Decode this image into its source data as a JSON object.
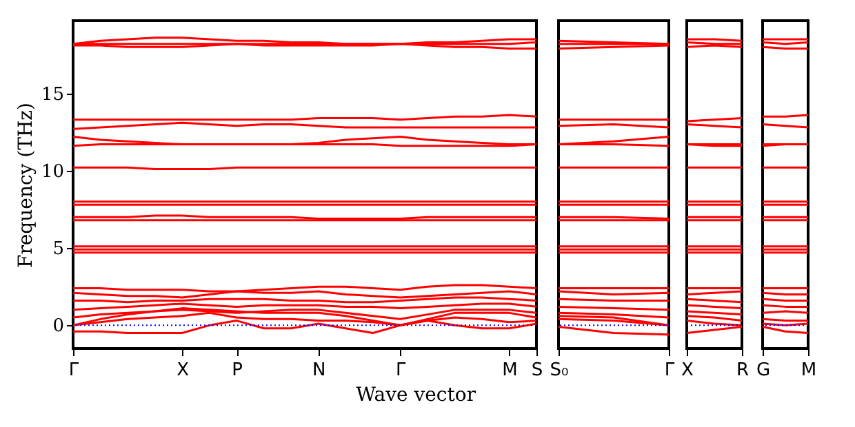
{
  "chart_data": [
    {
      "type": "line",
      "ylabel": "Frequency (THz)",
      "xlabel": "Wave vector",
      "categories": [
        "Γ",
        null,
        null,
        null,
        "X",
        null,
        "P",
        null,
        null,
        "N",
        null,
        null,
        "Γ",
        null,
        null,
        null,
        "M",
        "S"
      ],
      "ylim": [
        -1.5,
        19.7
      ],
      "yticks": [
        0,
        5,
        10,
        15
      ],
      "grid": false,
      "ref_lines": [
        {
          "axis": "y",
          "value": 0,
          "color": "#0000ff",
          "line_style": "dotted"
        }
      ],
      "series": [
        {
          "color": "#ff0000",
          "values": [
            18.2,
            18.4,
            18.5,
            18.6,
            18.6,
            18.5,
            18.4,
            18.4,
            18.3,
            18.3,
            18.2,
            18.2,
            18.2,
            18.3,
            18.3,
            18.4,
            18.5,
            18.5
          ]
        },
        {
          "color": "#ff0000",
          "values": [
            18.2,
            18.2,
            18.2,
            18.2,
            18.2,
            18.2,
            18.2,
            18.2,
            18.2,
            18.2,
            18.2,
            18.2,
            18.2,
            18.2,
            18.2,
            18.2,
            18.2,
            18.3
          ]
        },
        {
          "color": "#ff0000",
          "values": [
            18.1,
            18.1,
            18.0,
            18.0,
            18.0,
            18.1,
            18.2,
            18.1,
            18.1,
            18.1,
            18.1,
            18.1,
            18.2,
            18.1,
            18.0,
            18.0,
            17.9,
            17.9
          ]
        },
        {
          "color": "#ff0000",
          "values": [
            13.3,
            13.3,
            13.3,
            13.3,
            13.3,
            13.3,
            13.3,
            13.3,
            13.3,
            13.4,
            13.4,
            13.4,
            13.3,
            13.4,
            13.5,
            13.5,
            13.6,
            13.5
          ]
        },
        {
          "color": "#ff0000",
          "values": [
            12.7,
            12.8,
            12.9,
            13.0,
            13.1,
            13.0,
            12.9,
            13.0,
            13.0,
            12.9,
            12.8,
            12.8,
            12.8,
            12.8,
            12.8,
            12.8,
            12.8,
            12.8
          ]
        },
        {
          "color": "#ff0000",
          "values": [
            12.2,
            12.0,
            11.9,
            11.8,
            11.7,
            11.7,
            11.7,
            11.7,
            11.7,
            11.8,
            12.0,
            12.1,
            12.2,
            12.0,
            11.9,
            11.8,
            11.7,
            11.7
          ]
        },
        {
          "color": "#ff0000",
          "values": [
            11.6,
            11.7,
            11.7,
            11.7,
            11.7,
            11.7,
            11.7,
            11.7,
            11.7,
            11.7,
            11.7,
            11.7,
            11.6,
            11.6,
            11.6,
            11.6,
            11.6,
            11.7
          ]
        },
        {
          "color": "#ff0000",
          "values": [
            10.2,
            10.2,
            10.2,
            10.1,
            10.1,
            10.1,
            10.2,
            10.2,
            10.2,
            10.2,
            10.2,
            10.2,
            10.2,
            10.2,
            10.2,
            10.2,
            10.2,
            10.2
          ]
        },
        {
          "color": "#ff0000",
          "values": [
            8.0,
            8.0,
            8.0,
            8.0,
            8.0,
            8.0,
            8.0,
            8.0,
            8.0,
            8.0,
            8.0,
            8.0,
            8.0,
            8.0,
            8.0,
            8.0,
            8.0,
            8.0
          ]
        },
        {
          "color": "#ff0000",
          "values": [
            7.8,
            7.8,
            7.8,
            7.8,
            7.8,
            7.8,
            7.8,
            7.8,
            7.8,
            7.8,
            7.8,
            7.8,
            7.8,
            7.8,
            7.8,
            7.8,
            7.8,
            7.8
          ]
        },
        {
          "color": "#ff0000",
          "values": [
            7.0,
            7.0,
            7.0,
            7.1,
            7.1,
            7.0,
            7.0,
            7.0,
            7.0,
            6.9,
            6.9,
            6.9,
            6.9,
            7.0,
            7.0,
            7.0,
            7.0,
            7.0
          ]
        },
        {
          "color": "#ff0000",
          "values": [
            6.8,
            6.8,
            6.8,
            6.8,
            6.8,
            6.8,
            6.8,
            6.8,
            6.8,
            6.8,
            6.8,
            6.8,
            6.8,
            6.8,
            6.8,
            6.8,
            6.8,
            6.8
          ]
        },
        {
          "color": "#ff0000",
          "values": [
            5.1,
            5.1,
            5.1,
            5.1,
            5.1,
            5.1,
            5.1,
            5.1,
            5.1,
            5.1,
            5.1,
            5.1,
            5.1,
            5.1,
            5.1,
            5.1,
            5.1,
            5.1
          ]
        },
        {
          "color": "#ff0000",
          "values": [
            4.9,
            4.9,
            4.9,
            4.9,
            4.9,
            4.9,
            4.9,
            4.9,
            4.9,
            4.9,
            4.9,
            4.9,
            4.9,
            4.9,
            4.9,
            4.9,
            4.9,
            4.9
          ]
        },
        {
          "color": "#ff0000",
          "values": [
            4.7,
            4.7,
            4.7,
            4.7,
            4.7,
            4.7,
            4.7,
            4.7,
            4.7,
            4.7,
            4.7,
            4.7,
            4.7,
            4.7,
            4.7,
            4.7,
            4.7,
            4.7
          ]
        },
        {
          "color": "#ff0000",
          "values": [
            2.4,
            2.4,
            2.3,
            2.3,
            2.3,
            2.2,
            2.2,
            2.3,
            2.4,
            2.5,
            2.5,
            2.4,
            2.3,
            2.5,
            2.6,
            2.6,
            2.5,
            2.4
          ]
        },
        {
          "color": "#ff0000",
          "values": [
            2.1,
            2.0,
            1.9,
            1.9,
            1.8,
            2.0,
            2.2,
            2.1,
            2.1,
            2.2,
            2.0,
            1.9,
            1.8,
            1.9,
            2.0,
            2.1,
            2.2,
            2.0
          ]
        },
        {
          "color": "#ff0000",
          "values": [
            1.6,
            1.6,
            1.5,
            1.6,
            1.6,
            1.7,
            1.7,
            1.7,
            1.6,
            1.6,
            1.5,
            1.5,
            1.6,
            1.7,
            1.8,
            1.8,
            1.7,
            1.6
          ]
        },
        {
          "color": "#ff0000",
          "values": [
            1.0,
            1.1,
            1.2,
            1.3,
            1.4,
            1.3,
            1.2,
            1.3,
            1.3,
            1.3,
            1.2,
            1.2,
            1.1,
            1.2,
            1.3,
            1.4,
            1.4,
            1.2
          ]
        },
        {
          "color": "#ff0000",
          "values": [
            0.5,
            0.7,
            0.8,
            0.9,
            1.0,
            0.9,
            0.8,
            0.9,
            1.0,
            1.0,
            0.8,
            0.6,
            0.4,
            0.7,
            1.0,
            1.0,
            1.0,
            0.8
          ]
        },
        {
          "color": "#ff0000",
          "values": [
            0.0,
            0.4,
            0.7,
            0.9,
            1.1,
            1.0,
            0.9,
            0.8,
            0.8,
            0.8,
            0.6,
            0.3,
            0.0,
            0.4,
            0.8,
            0.8,
            0.8,
            0.5
          ]
        },
        {
          "color": "#ff0000",
          "values": [
            0.0,
            0.2,
            0.4,
            0.5,
            0.6,
            0.8,
            0.5,
            0.4,
            0.4,
            0.3,
            0.3,
            0.2,
            0.0,
            0.3,
            0.5,
            0.4,
            0.2,
            0.3
          ]
        },
        {
          "color": "#ff0000",
          "values": [
            -0.4,
            -0.4,
            -0.5,
            -0.5,
            -0.5,
            0.0,
            0.3,
            -0.2,
            -0.2,
            0.1,
            -0.2,
            -0.5,
            0.0,
            0.3,
            0.0,
            -0.2,
            -0.2,
            0.1
          ]
        }
      ]
    },
    {
      "type": "line",
      "categories": [
        "S₀",
        null,
        "Γ"
      ],
      "ylim": [
        -1.5,
        19.7
      ],
      "grid": false,
      "tick_labels": "x",
      "ref_lines": [
        {
          "axis": "y",
          "value": 0,
          "color": "#0000ff",
          "line_style": "dotted"
        }
      ],
      "series": [
        {
          "color": "#ff0000",
          "values": [
            18.4,
            18.3,
            18.2
          ]
        },
        {
          "color": "#ff0000",
          "values": [
            18.2,
            18.2,
            18.2
          ]
        },
        {
          "color": "#ff0000",
          "values": [
            17.9,
            18.0,
            18.1
          ]
        },
        {
          "color": "#ff0000",
          "values": [
            13.3,
            13.3,
            13.3
          ]
        },
        {
          "color": "#ff0000",
          "values": [
            12.9,
            13.0,
            12.8
          ]
        },
        {
          "color": "#ff0000",
          "values": [
            11.7,
            11.9,
            12.2
          ]
        },
        {
          "color": "#ff0000",
          "values": [
            11.7,
            11.7,
            11.6
          ]
        },
        {
          "color": "#ff0000",
          "values": [
            10.2,
            10.2,
            10.2
          ]
        },
        {
          "color": "#ff0000",
          "values": [
            8.0,
            8.0,
            8.0
          ]
        },
        {
          "color": "#ff0000",
          "values": [
            7.8,
            7.8,
            7.8
          ]
        },
        {
          "color": "#ff0000",
          "values": [
            7.0,
            7.0,
            6.9
          ]
        },
        {
          "color": "#ff0000",
          "values": [
            6.8,
            6.8,
            6.8
          ]
        },
        {
          "color": "#ff0000",
          "values": [
            5.1,
            5.1,
            5.1
          ]
        },
        {
          "color": "#ff0000",
          "values": [
            4.9,
            4.9,
            4.9
          ]
        },
        {
          "color": "#ff0000",
          "values": [
            4.7,
            4.7,
            4.7
          ]
        },
        {
          "color": "#ff0000",
          "values": [
            2.4,
            2.4,
            2.4
          ]
        },
        {
          "color": "#ff0000",
          "values": [
            2.2,
            2.0,
            2.1
          ]
        },
        {
          "color": "#ff0000",
          "values": [
            1.7,
            1.6,
            1.6
          ]
        },
        {
          "color": "#ff0000",
          "values": [
            1.2,
            1.1,
            1.0
          ]
        },
        {
          "color": "#ff0000",
          "values": [
            0.8,
            0.7,
            0.5
          ]
        },
        {
          "color": "#ff0000",
          "values": [
            0.6,
            0.5,
            0.0
          ]
        },
        {
          "color": "#ff0000",
          "values": [
            0.4,
            0.3,
            0.0
          ]
        },
        {
          "color": "#ff0000",
          "values": [
            -0.1,
            -0.5,
            -0.6
          ]
        }
      ]
    },
    {
      "type": "line",
      "categories": [
        "X",
        null,
        "R"
      ],
      "ylim": [
        -1.5,
        19.7
      ],
      "grid": false,
      "tick_labels": "x",
      "ref_lines": [
        {
          "axis": "y",
          "value": 0,
          "color": "#0000ff",
          "line_style": "dotted"
        }
      ],
      "series": [
        {
          "color": "#ff0000",
          "values": [
            18.5,
            18.5,
            18.4
          ]
        },
        {
          "color": "#ff0000",
          "values": [
            18.3,
            18.2,
            18.2
          ]
        },
        {
          "color": "#ff0000",
          "values": [
            18.0,
            18.1,
            18.0
          ]
        },
        {
          "color": "#ff0000",
          "values": [
            13.2,
            13.3,
            13.4
          ]
        },
        {
          "color": "#ff0000",
          "values": [
            13.0,
            12.9,
            12.8
          ]
        },
        {
          "color": "#ff0000",
          "values": [
            11.7,
            11.7,
            11.7
          ]
        },
        {
          "color": "#ff0000",
          "values": [
            11.7,
            11.6,
            11.6
          ]
        },
        {
          "color": "#ff0000",
          "values": [
            10.2,
            10.2,
            10.2
          ]
        },
        {
          "color": "#ff0000",
          "values": [
            8.0,
            8.0,
            8.0
          ]
        },
        {
          "color": "#ff0000",
          "values": [
            7.8,
            7.8,
            7.8
          ]
        },
        {
          "color": "#ff0000",
          "values": [
            7.0,
            7.0,
            7.0
          ]
        },
        {
          "color": "#ff0000",
          "values": [
            6.8,
            6.8,
            6.8
          ]
        },
        {
          "color": "#ff0000",
          "values": [
            5.1,
            5.1,
            5.1
          ]
        },
        {
          "color": "#ff0000",
          "values": [
            4.9,
            4.9,
            4.9
          ]
        },
        {
          "color": "#ff0000",
          "values": [
            4.7,
            4.7,
            4.7
          ]
        },
        {
          "color": "#ff0000",
          "values": [
            2.4,
            2.4,
            2.4
          ]
        },
        {
          "color": "#ff0000",
          "values": [
            2.0,
            2.1,
            2.2
          ]
        },
        {
          "color": "#ff0000",
          "values": [
            1.7,
            1.6,
            1.5
          ]
        },
        {
          "color": "#ff0000",
          "values": [
            1.3,
            1.2,
            1.1
          ]
        },
        {
          "color": "#ff0000",
          "values": [
            0.9,
            0.8,
            0.7
          ]
        },
        {
          "color": "#ff0000",
          "values": [
            0.6,
            0.5,
            0.3
          ]
        },
        {
          "color": "#ff0000",
          "values": [
            0.3,
            0.1,
            0.0
          ]
        },
        {
          "color": "#ff0000",
          "values": [
            -0.5,
            -0.3,
            -0.1
          ]
        }
      ]
    },
    {
      "type": "line",
      "categories": [
        "G",
        null,
        "M"
      ],
      "ylim": [
        -1.5,
        19.7
      ],
      "grid": false,
      "tick_labels": "x",
      "ref_lines": [
        {
          "axis": "y",
          "value": 0,
          "color": "#0000ff",
          "line_style": "dotted"
        }
      ],
      "series": [
        {
          "color": "#ff0000",
          "values": [
            18.5,
            18.5,
            18.5
          ]
        },
        {
          "color": "#ff0000",
          "values": [
            18.3,
            18.2,
            18.3
          ]
        },
        {
          "color": "#ff0000",
          "values": [
            18.0,
            17.9,
            17.9
          ]
        },
        {
          "color": "#ff0000",
          "values": [
            13.5,
            13.5,
            13.6
          ]
        },
        {
          "color": "#ff0000",
          "values": [
            13.0,
            12.9,
            12.8
          ]
        },
        {
          "color": "#ff0000",
          "values": [
            11.7,
            11.7,
            11.7
          ]
        },
        {
          "color": "#ff0000",
          "values": [
            11.6,
            11.7,
            11.7
          ]
        },
        {
          "color": "#ff0000",
          "values": [
            10.2,
            10.2,
            10.2
          ]
        },
        {
          "color": "#ff0000",
          "values": [
            8.0,
            8.0,
            8.0
          ]
        },
        {
          "color": "#ff0000",
          "values": [
            7.8,
            7.8,
            7.8
          ]
        },
        {
          "color": "#ff0000",
          "values": [
            7.0,
            7.0,
            7.0
          ]
        },
        {
          "color": "#ff0000",
          "values": [
            6.8,
            6.8,
            6.8
          ]
        },
        {
          "color": "#ff0000",
          "values": [
            5.1,
            5.1,
            5.1
          ]
        },
        {
          "color": "#ff0000",
          "values": [
            4.9,
            4.9,
            4.9
          ]
        },
        {
          "color": "#ff0000",
          "values": [
            4.7,
            4.7,
            4.7
          ]
        },
        {
          "color": "#ff0000",
          "values": [
            2.4,
            2.4,
            2.4
          ]
        },
        {
          "color": "#ff0000",
          "values": [
            2.1,
            2.0,
            2.0
          ]
        },
        {
          "color": "#ff0000",
          "values": [
            1.7,
            1.6,
            1.6
          ]
        },
        {
          "color": "#ff0000",
          "values": [
            1.3,
            1.2,
            1.2
          ]
        },
        {
          "color": "#ff0000",
          "values": [
            0.8,
            0.9,
            0.8
          ]
        },
        {
          "color": "#ff0000",
          "values": [
            0.4,
            0.3,
            0.3
          ]
        },
        {
          "color": "#ff0000",
          "values": [
            0.1,
            0.0,
            0.1
          ]
        },
        {
          "color": "#ff0000",
          "values": [
            -0.1,
            -0.4,
            -0.5
          ]
        }
      ]
    }
  ]
}
